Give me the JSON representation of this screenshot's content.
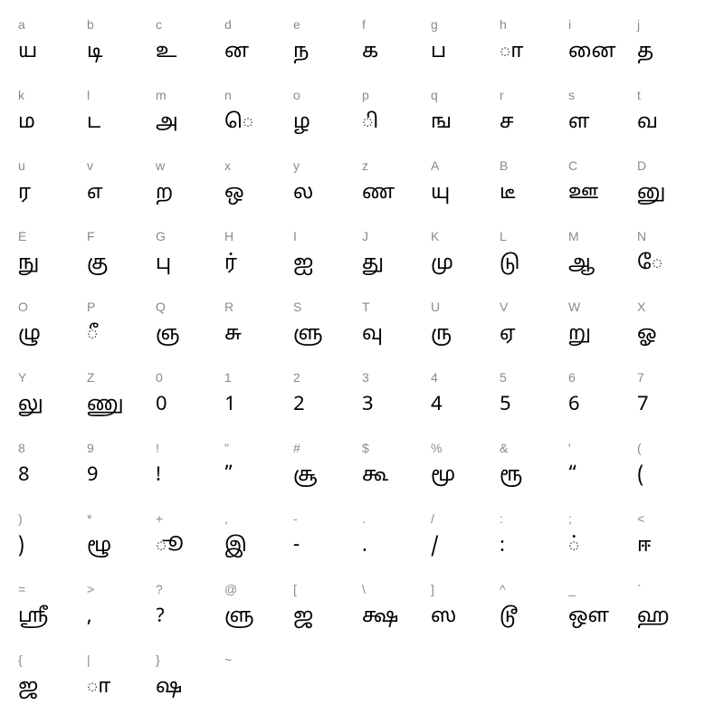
{
  "layout": {
    "columns": 10,
    "key_fontsize": 14,
    "glyph_fontsize": 22,
    "key_color": "#8a8a8a",
    "glyph_color": "#000000",
    "background_color": "#ffffff"
  },
  "cells": [
    {
      "key": "a",
      "glyph": "ய"
    },
    {
      "key": "b",
      "glyph": "டி"
    },
    {
      "key": "c",
      "glyph": "உ"
    },
    {
      "key": "d",
      "glyph": "ன"
    },
    {
      "key": "e",
      "glyph": "ந"
    },
    {
      "key": "f",
      "glyph": "க"
    },
    {
      "key": "g",
      "glyph": "ப"
    },
    {
      "key": "h",
      "glyph": "ா"
    },
    {
      "key": "i",
      "glyph": "னை"
    },
    {
      "key": "j",
      "glyph": "த"
    },
    {
      "key": "k",
      "glyph": "ம"
    },
    {
      "key": "l",
      "glyph": "ட"
    },
    {
      "key": "m",
      "glyph": "அ"
    },
    {
      "key": "n",
      "glyph": "ெ"
    },
    {
      "key": "o",
      "glyph": "ழ"
    },
    {
      "key": "p",
      "glyph": "ி"
    },
    {
      "key": "q",
      "glyph": "ங"
    },
    {
      "key": "r",
      "glyph": "ச"
    },
    {
      "key": "s",
      "glyph": "ள"
    },
    {
      "key": "t",
      "glyph": "வ"
    },
    {
      "key": "u",
      "glyph": "ர"
    },
    {
      "key": "v",
      "glyph": "எ"
    },
    {
      "key": "w",
      "glyph": "ற"
    },
    {
      "key": "x",
      "glyph": "ஒ"
    },
    {
      "key": "y",
      "glyph": "ல"
    },
    {
      "key": "z",
      "glyph": "ண"
    },
    {
      "key": "A",
      "glyph": "யு"
    },
    {
      "key": "B",
      "glyph": "டீ"
    },
    {
      "key": "C",
      "glyph": "ஊ"
    },
    {
      "key": "D",
      "glyph": "னு"
    },
    {
      "key": "E",
      "glyph": "நு"
    },
    {
      "key": "F",
      "glyph": "கு"
    },
    {
      "key": "G",
      "glyph": "பு"
    },
    {
      "key": "H",
      "glyph": "ர்"
    },
    {
      "key": "I",
      "glyph": "ஐ"
    },
    {
      "key": "J",
      "glyph": "து"
    },
    {
      "key": "K",
      "glyph": "மு"
    },
    {
      "key": "L",
      "glyph": "டு"
    },
    {
      "key": "M",
      "glyph": "ஆ"
    },
    {
      "key": "N",
      "glyph": "ே"
    },
    {
      "key": "O",
      "glyph": "ழு"
    },
    {
      "key": "P",
      "glyph": "ீ"
    },
    {
      "key": "Q",
      "glyph": "ஞ"
    },
    {
      "key": "R",
      "glyph": "சு"
    },
    {
      "key": "S",
      "glyph": "ளு"
    },
    {
      "key": "T",
      "glyph": "வு"
    },
    {
      "key": "U",
      "glyph": "ரு"
    },
    {
      "key": "V",
      "glyph": "ஏ"
    },
    {
      "key": "W",
      "glyph": "று"
    },
    {
      "key": "X",
      "glyph": "ஓ"
    },
    {
      "key": "Y",
      "glyph": "லு"
    },
    {
      "key": "Z",
      "glyph": "ணு"
    },
    {
      "key": "0",
      "glyph": "0"
    },
    {
      "key": "1",
      "glyph": "1"
    },
    {
      "key": "2",
      "glyph": "2"
    },
    {
      "key": "3",
      "glyph": "3"
    },
    {
      "key": "4",
      "glyph": "4"
    },
    {
      "key": "5",
      "glyph": "5"
    },
    {
      "key": "6",
      "glyph": "6"
    },
    {
      "key": "7",
      "glyph": "7"
    },
    {
      "key": "8",
      "glyph": "8"
    },
    {
      "key": "9",
      "glyph": "9"
    },
    {
      "key": "!",
      "glyph": "!"
    },
    {
      "key": "\"",
      "glyph": "”"
    },
    {
      "key": "#",
      "glyph": "சூ"
    },
    {
      "key": "$",
      "glyph": "கூ"
    },
    {
      "key": "%",
      "glyph": "மூ"
    },
    {
      "key": "&",
      "glyph": "ரூ"
    },
    {
      "key": "'",
      "glyph": "“"
    },
    {
      "key": "(",
      "glyph": "("
    },
    {
      "key": ")",
      "glyph": ")"
    },
    {
      "key": "*",
      "glyph": "ழூ"
    },
    {
      "key": "+",
      "glyph": "ூ"
    },
    {
      "key": ",",
      "glyph": "இ"
    },
    {
      "key": "-",
      "glyph": "-"
    },
    {
      "key": ".",
      "glyph": "."
    },
    {
      "key": "/",
      "glyph": "/"
    },
    {
      "key": ":",
      "glyph": ":"
    },
    {
      "key": ";",
      "glyph": "்"
    },
    {
      "key": "<",
      "glyph": "ஈ"
    },
    {
      "key": "=",
      "glyph": "ஸ்ரீ"
    },
    {
      "key": ">",
      "glyph": ","
    },
    {
      "key": "?",
      "glyph": "?"
    },
    {
      "key": "@",
      "glyph": "ளு"
    },
    {
      "key": "[",
      "glyph": "ஜ"
    },
    {
      "key": "\\",
      "glyph": "க்ஷ"
    },
    {
      "key": "]",
      "glyph": "ஸ"
    },
    {
      "key": "^",
      "glyph": "டூ"
    },
    {
      "key": "_",
      "glyph": "ஔ"
    },
    {
      "key": "`",
      "glyph": "ஹ"
    },
    {
      "key": "{",
      "glyph": "ஜ"
    },
    {
      "key": "|",
      "glyph": "ா"
    },
    {
      "key": "}",
      "glyph": "ஷ"
    },
    {
      "key": "~",
      "glyph": ""
    }
  ]
}
